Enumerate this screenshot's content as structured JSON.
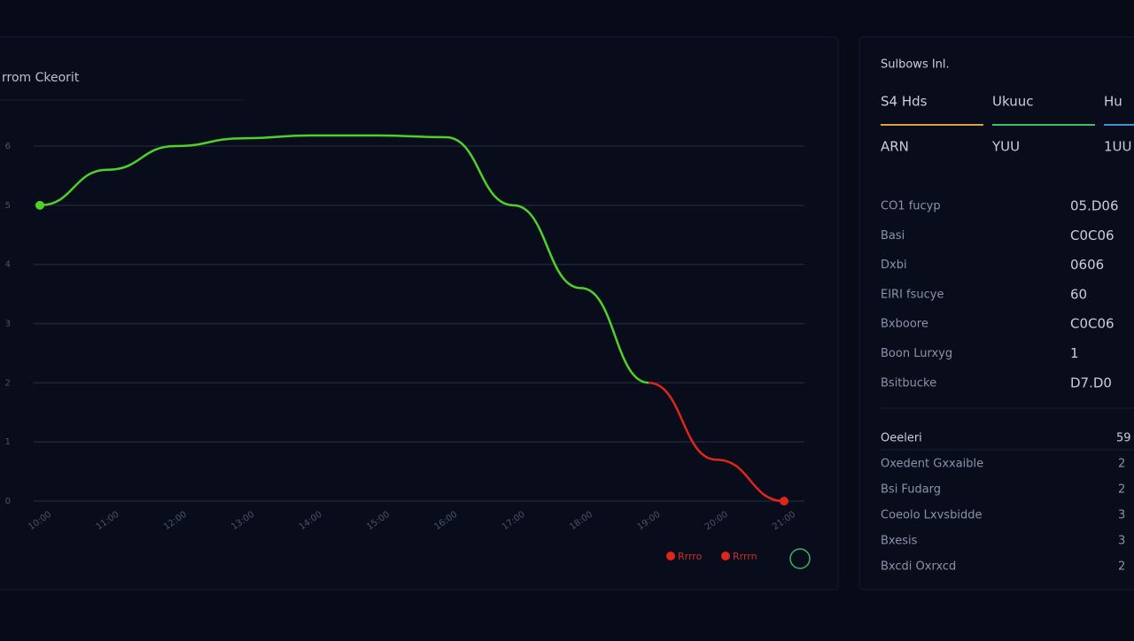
{
  "chart_data": {
    "type": "line",
    "title": "rrom Ckeorit",
    "categories": [
      "10:00",
      "11:00",
      "12:00",
      "13:00",
      "14:00",
      "15:00",
      "16:00",
      "17:00",
      "18:00",
      "19:00",
      "20:00",
      "21:00"
    ],
    "series": [
      {
        "name": "Rrrro",
        "color": "#4fd12a",
        "values": [
          5.0,
          5.6,
          6.0,
          6.13,
          6.18,
          6.18,
          6.15,
          5.0,
          3.6,
          2.0,
          null,
          null
        ]
      },
      {
        "name": "Rrrrn",
        "color": "#e0251c",
        "values": [
          null,
          null,
          null,
          null,
          null,
          null,
          null,
          null,
          null,
          2.0,
          0.7,
          0
        ]
      }
    ],
    "ylim": [
      0,
      6
    ],
    "yticks": [
      0,
      1,
      2,
      3,
      4,
      5,
      6
    ],
    "grid": true
  },
  "panel": {
    "title": "Sulbows Inl.",
    "tabs": [
      {
        "label": "S4 Hds",
        "value": "ARN",
        "color": "#e0a040"
      },
      {
        "label": "Ukuuc",
        "value": "YUU",
        "color": "#3fbf6a"
      },
      {
        "label": "Hu",
        "value": "1UU",
        "color": "#3f8fd0"
      }
    ],
    "rows": [
      {
        "label": "CO1 fucyp",
        "value": "05.D06"
      },
      {
        "label": "Basi",
        "value": "C0C06"
      },
      {
        "label": "Dxbi",
        "value": "0606"
      },
      {
        "label": "EIRI fsucye",
        "value": "60"
      },
      {
        "label": "Bxboore",
        "value": "C0C06"
      },
      {
        "label": "Boon Lurxyg",
        "value": "1"
      },
      {
        "label": "Bsitbucke",
        "value": "D7.D0"
      }
    ],
    "section": {
      "title": "Oeeleri",
      "value": "59",
      "rows": [
        {
          "label": "Oxedent Gxxaible",
          "value": "2"
        },
        {
          "label": "Bsi Fudarg",
          "value": "2"
        },
        {
          "label": "Coeolo Lxvsbidde",
          "value": "3"
        },
        {
          "label": "Bxesis",
          "value": "3"
        },
        {
          "label": "Bxcdi Oxrxcd",
          "value": "2"
        }
      ]
    }
  }
}
